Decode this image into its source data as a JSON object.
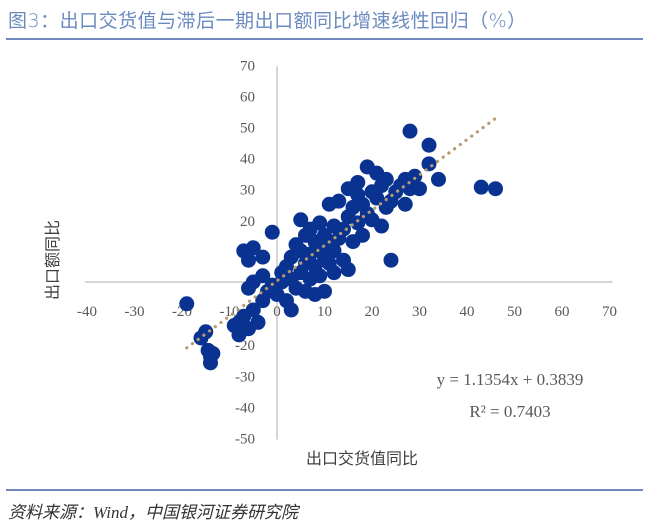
{
  "header": {
    "title": "图3：出口交货值与滞后一期出口额同比增速线性回归（%）"
  },
  "footer": {
    "source": "资料来源：Wind，中国银河证券研究院"
  },
  "colors": {
    "title": "#6b8ac0",
    "rule": "#7088bd",
    "points": "#0a3391",
    "trendline": "#b59a72",
    "axis": "#c8c8c8"
  },
  "chart_data": {
    "type": "scatter",
    "title": "出口交货值与滞后一期出口额同比增速线性回归（%）",
    "xlabel": "出口交货值同比",
    "ylabel": "出口额同比",
    "xlim": [
      -40,
      70
    ],
    "ylim": [
      -50,
      70
    ],
    "xticks": [
      -40,
      -30,
      -20,
      -10,
      0,
      10,
      20,
      30,
      40,
      50,
      60,
      70
    ],
    "yticks": [
      -50,
      -40,
      -30,
      -20,
      -10,
      0,
      10,
      20,
      30,
      40,
      50,
      60,
      70
    ],
    "grid": false,
    "legend": null,
    "trendline": {
      "type": "linear",
      "equation": "y = 1.1354x + 0.3839",
      "r_squared_label": "R² = 0.7403",
      "slope": 1.1354,
      "intercept": 0.3839,
      "r_squared": 0.7403,
      "x_range": [
        -19,
        46
      ]
    },
    "points": [
      [
        -19,
        -7
      ],
      [
        -16,
        -18
      ],
      [
        -15,
        -16
      ],
      [
        -14.5,
        -22
      ],
      [
        -14,
        -24
      ],
      [
        -14,
        -26
      ],
      [
        -13.5,
        -23
      ],
      [
        -9,
        -14
      ],
      [
        -8,
        -13
      ],
      [
        -8,
        -17
      ],
      [
        -7,
        -11
      ],
      [
        -6,
        -15
      ],
      [
        -5,
        -9
      ],
      [
        -4,
        -13
      ],
      [
        -3,
        -6
      ],
      [
        -6,
        -2
      ],
      [
        -5,
        0
      ],
      [
        -3,
        2
      ],
      [
        -2,
        -3
      ],
      [
        -1,
        -1
      ],
      [
        -7,
        10
      ],
      [
        -6,
        7
      ],
      [
        -5,
        11
      ],
      [
        -3,
        8
      ],
      [
        -1,
        16
      ],
      [
        0,
        -4
      ],
      [
        1,
        0
      ],
      [
        1,
        3
      ],
      [
        2,
        -6
      ],
      [
        2,
        5
      ],
      [
        3,
        1
      ],
      [
        3,
        -9
      ],
      [
        3,
        8
      ],
      [
        4,
        -2
      ],
      [
        4,
        12
      ],
      [
        5,
        3
      ],
      [
        5,
        10
      ],
      [
        5,
        20
      ],
      [
        6,
        6
      ],
      [
        6,
        -3
      ],
      [
        6,
        15
      ],
      [
        7,
        1
      ],
      [
        7,
        9
      ],
      [
        7,
        17
      ],
      [
        8,
        -4
      ],
      [
        8,
        5
      ],
      [
        8,
        13
      ],
      [
        9,
        2
      ],
      [
        9,
        11
      ],
      [
        9,
        19
      ],
      [
        10,
        -3
      ],
      [
        10,
        8
      ],
      [
        10,
        15
      ],
      [
        11,
        6
      ],
      [
        11,
        12
      ],
      [
        11,
        25
      ],
      [
        12,
        3
      ],
      [
        12,
        10
      ],
      [
        12,
        18
      ],
      [
        13,
        14
      ],
      [
        13,
        26
      ],
      [
        14,
        7
      ],
      [
        14,
        17
      ],
      [
        15,
        4
      ],
      [
        15,
        21
      ],
      [
        15,
        30
      ],
      [
        16,
        13
      ],
      [
        16,
        24
      ],
      [
        17,
        19
      ],
      [
        17,
        32
      ],
      [
        17,
        28
      ],
      [
        18,
        15
      ],
      [
        18,
        25
      ],
      [
        19,
        22
      ],
      [
        19,
        37
      ],
      [
        20,
        20
      ],
      [
        20,
        29
      ],
      [
        21,
        27
      ],
      [
        21,
        35
      ],
      [
        22,
        18
      ],
      [
        22,
        31
      ],
      [
        23,
        24
      ],
      [
        23,
        33
      ],
      [
        24,
        7
      ],
      [
        24,
        26
      ],
      [
        25,
        29
      ],
      [
        26,
        31
      ],
      [
        27,
        25
      ],
      [
        27,
        33
      ],
      [
        28,
        48.5
      ],
      [
        28,
        30
      ],
      [
        29,
        34
      ],
      [
        30,
        30
      ],
      [
        32,
        38
      ],
      [
        32,
        44
      ],
      [
        34,
        33
      ],
      [
        43,
        30.5
      ],
      [
        46,
        30
      ]
    ]
  }
}
